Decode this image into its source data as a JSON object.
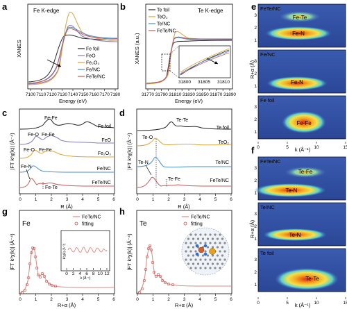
{
  "panels": {
    "a": {
      "letter": "a",
      "title": "Fe K-edge",
      "xlabel": "Energy (eV)",
      "ylabel": "XANES",
      "xticks": [
        "7100",
        "7110",
        "7120",
        "7130",
        "7140",
        "7150",
        "7160",
        "7170",
        "7180"
      ],
      "legend": [
        "Fe foil",
        "FeO",
        "Fe₂O₃",
        "Fe/NC",
        "FeTe/NC"
      ]
    },
    "b": {
      "letter": "b",
      "title": "Te K-edge",
      "xlabel": "Energy (eV)",
      "ylabel": "XANES (a.u.)",
      "xticks": [
        "31770",
        "31780",
        "31790",
        "31800",
        "31810",
        "31820",
        "31830",
        "31840",
        "31850",
        "31860",
        "31870",
        "31880",
        "31890"
      ],
      "inset_xticks": [
        "31800",
        "31805",
        "31810"
      ],
      "legend": [
        "Te foil",
        "TeO₂",
        "Te/NC",
        "FeTe/NC"
      ]
    },
    "c": {
      "letter": "c",
      "xlabel": "R (Å)",
      "ylabel": "|FT k³χ(k)| (Å⁻⁴)",
      "xticks": [
        "0",
        "1",
        "2",
        "3",
        "4",
        "5",
        "6"
      ],
      "curves": [
        "Fe foil",
        "FeO",
        "Fe₂O₃",
        "Fe/NC",
        "FeTe/NC"
      ],
      "annotations": [
        "Fe-Fe",
        "Fe-O",
        "Fe-Fe",
        "Fe-O",
        "Fe-Fe",
        "Fe-N",
        "Fe-Te"
      ]
    },
    "d": {
      "letter": "d",
      "xlabel": "R (Å)",
      "ylabel": "|FT k³χ(k)| (Å⁻⁴)",
      "xticks": [
        "0",
        "1",
        "2",
        "3",
        "4",
        "5",
        "6"
      ],
      "curves": [
        "Te foil",
        "TeO₂",
        "Te/NC",
        "FeTe/NC"
      ],
      "annotations": [
        "Te-Te",
        "Te-O",
        "Te-N",
        "Te-Fe"
      ]
    },
    "e": {
      "letter": "e",
      "ylabel": "R+α (Å)",
      "xlabel": "k (Å⁻¹)",
      "xticks": [
        "0",
        "5",
        "10",
        "15"
      ],
      "yticks": [
        "1",
        "2",
        "3"
      ],
      "maps": [
        {
          "name": "FeTe/NC",
          "labels": [
            "Fe-Te",
            "Fe-N"
          ]
        },
        {
          "name": "Fe/NC",
          "labels": [
            "Fe-N"
          ]
        },
        {
          "name": "Fe foil",
          "labels": [
            "Fe-Fe"
          ]
        }
      ]
    },
    "f": {
      "letter": "f",
      "ylabel": "R+α (Å)",
      "xlabel": "k (Å⁻¹)",
      "xticks": [
        "0",
        "5",
        "10",
        "15"
      ],
      "yticks": [
        "1",
        "2",
        "3"
      ],
      "maps": [
        {
          "name": "FeTe/NC",
          "labels": [
            "Te-Fe",
            "Te-N"
          ]
        },
        {
          "name": "Te/NC",
          "labels": [
            "Te-N"
          ]
        },
        {
          "name": "Te foil",
          "labels": [
            "Te-Te"
          ]
        }
      ]
    },
    "g": {
      "letter": "g",
      "element": "Fe",
      "xlabel": "R+α (Å)",
      "ylabel": "|FT k³χ(k)| (Å⁻⁴)",
      "xticks": [
        "0",
        "1",
        "2",
        "3",
        "4",
        "5",
        "6"
      ],
      "legend": [
        "FeTe/NC",
        "fitting"
      ],
      "inset_xlabel": "k (Å⁻¹)",
      "inset_ylabel": "k³χ(k) (Å⁻³)",
      "inset_xticks": [
        "0",
        "2",
        "4",
        "6",
        "8",
        "10",
        "12"
      ]
    },
    "h": {
      "letter": "h",
      "element": "Te",
      "xlabel": "R+α (Å)",
      "ylabel": "|FT k³χ(k)| (Å⁻⁴)",
      "xticks": [
        "0",
        "1",
        "2",
        "3",
        "4",
        "5",
        "6"
      ],
      "legend": [
        "FeTe/NC",
        "fitting"
      ]
    }
  },
  "colors": {
    "fe_foil": "#222222",
    "feo": "#8a78b8",
    "fe2o3": "#d9a437",
    "fenc": "#4a8fc8",
    "fetenc": "#c8565e",
    "wt_bg": "#2f4ea3",
    "wt_hot": "#e52a12"
  }
}
